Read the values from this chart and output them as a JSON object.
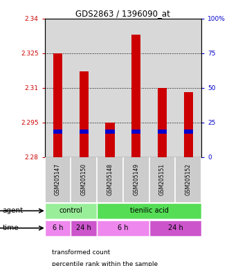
{
  "title": "GDS2863 / 1396090_at",
  "samples": [
    "GSM205147",
    "GSM205150",
    "GSM205148",
    "GSM205149",
    "GSM205151",
    "GSM205152"
  ],
  "bar_bottoms": [
    2.28,
    2.28,
    2.28,
    2.28,
    2.28,
    2.28
  ],
  "bar_tops": [
    2.325,
    2.317,
    2.295,
    2.333,
    2.31,
    2.308
  ],
  "percentile_values": [
    2.291,
    2.291,
    2.291,
    2.291,
    2.291,
    2.291
  ],
  "ylim_left": [
    2.28,
    2.34
  ],
  "yticks_left": [
    2.28,
    2.295,
    2.31,
    2.325,
    2.34
  ],
  "yticks_right": [
    0,
    25,
    50,
    75,
    100
  ],
  "ytick_right_labels": [
    "0",
    "25",
    "50",
    "75",
    "100%"
  ],
  "bar_color": "#cc0000",
  "percentile_color": "#0000cc",
  "agent_row": [
    {
      "label": "control",
      "start": 0,
      "end": 2,
      "color": "#99ee99"
    },
    {
      "label": "tienilic acid",
      "start": 2,
      "end": 6,
      "color": "#55dd55"
    }
  ],
  "time_row": [
    {
      "label": "6 h",
      "start": 0,
      "end": 1,
      "color": "#ee88ee"
    },
    {
      "label": "24 h",
      "start": 1,
      "end": 2,
      "color": "#cc55cc"
    },
    {
      "label": "6 h",
      "start": 2,
      "end": 4,
      "color": "#ee88ee"
    },
    {
      "label": "24 h",
      "start": 4,
      "end": 6,
      "color": "#cc55cc"
    }
  ],
  "legend_items": [
    {
      "color": "#cc0000",
      "label": "transformed count"
    },
    {
      "color": "#0000cc",
      "label": "percentile rank within the sample"
    }
  ],
  "background_color": "#ffffff",
  "plot_bg_color": "#d8d8d8"
}
